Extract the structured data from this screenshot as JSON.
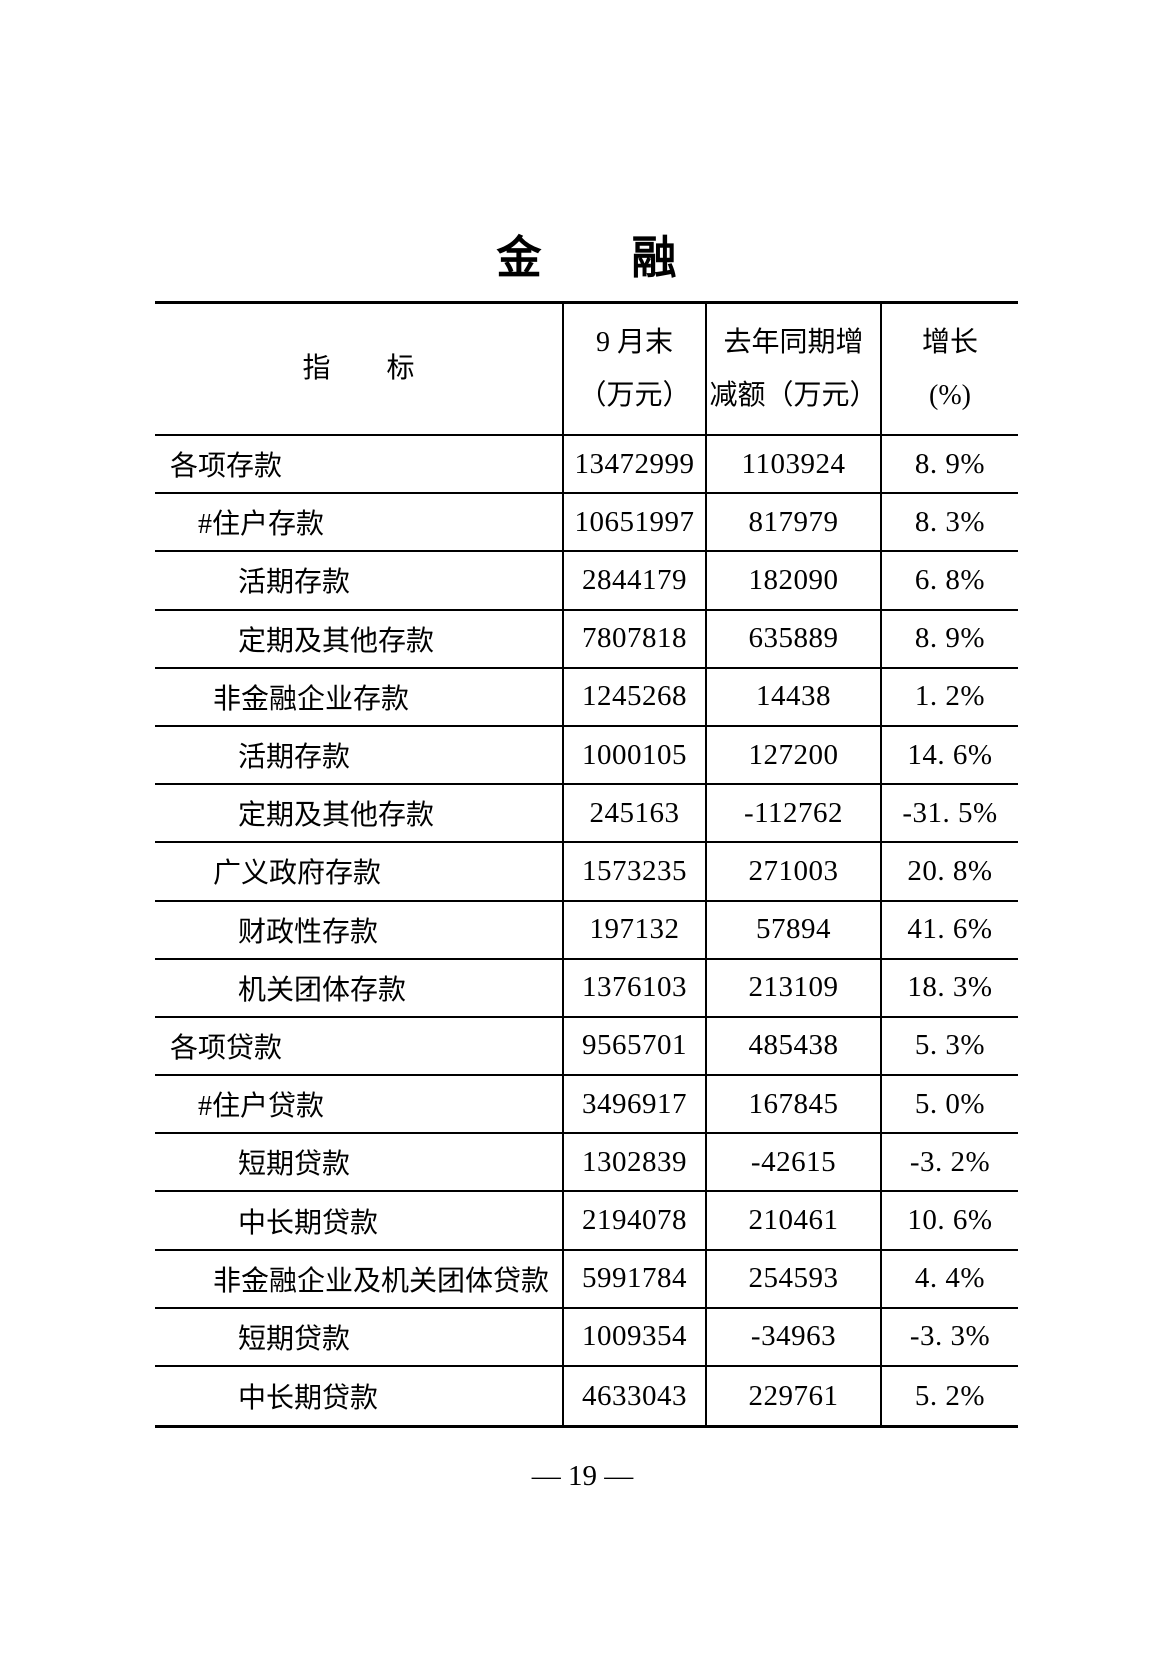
{
  "title": "金　　融",
  "table": {
    "header": {
      "indicator": "指　　标",
      "end_of_sept_line1": "9 月末",
      "end_of_sept_line2": "（万元）",
      "yoy_change_line1": "去年同期增",
      "yoy_change_line2": "减额（万元）",
      "growth_line1": "增长",
      "growth_line2": "(%)"
    },
    "rows": [
      {
        "label": "各项存款",
        "level": 0,
        "end": "13472999",
        "change": "1103924",
        "growth": "8. 9%"
      },
      {
        "label": "#住户存款",
        "level": 1,
        "end": "10651997",
        "change": "817979",
        "growth": "8. 3%"
      },
      {
        "label": "活期存款",
        "level": 3,
        "end": "2844179",
        "change": "182090",
        "growth": "6. 8%"
      },
      {
        "label": "定期及其他存款",
        "level": 3,
        "end": "7807818",
        "change": "635889",
        "growth": "8. 9%"
      },
      {
        "label": "非金融企业存款",
        "level": 2,
        "end": "1245268",
        "change": "14438",
        "growth": "1. 2%"
      },
      {
        "label": "活期存款",
        "level": 3,
        "end": "1000105",
        "change": "127200",
        "growth": "14. 6%"
      },
      {
        "label": "定期及其他存款",
        "level": 3,
        "end": "245163",
        "change": "-112762",
        "growth": "-31. 5%"
      },
      {
        "label": "广义政府存款",
        "level": 2,
        "end": "1573235",
        "change": "271003",
        "growth": "20. 8%"
      },
      {
        "label": "财政性存款",
        "level": 3,
        "end": "197132",
        "change": "57894",
        "growth": "41. 6%"
      },
      {
        "label": "机关团体存款",
        "level": 3,
        "end": "1376103",
        "change": "213109",
        "growth": "18. 3%"
      },
      {
        "label": "各项贷款",
        "level": 0,
        "end": "9565701",
        "change": "485438",
        "growth": "5. 3%"
      },
      {
        "label": "#住户贷款",
        "level": 1,
        "end": "3496917",
        "change": "167845",
        "growth": "5. 0%"
      },
      {
        "label": "短期贷款",
        "level": 3,
        "end": "1302839",
        "change": "-42615",
        "growth": "-3. 2%"
      },
      {
        "label": "中长期贷款",
        "level": 3,
        "end": "2194078",
        "change": "210461",
        "growth": "10. 6%"
      },
      {
        "label": "非金融企业及机关团体贷款",
        "level": 2,
        "end": "5991784",
        "change": "254593",
        "growth": "4. 4%"
      },
      {
        "label": "短期贷款",
        "level": 3,
        "end": "1009354",
        "change": "-34963",
        "growth": "-3. 3%"
      },
      {
        "label": "中长期贷款",
        "level": 3,
        "end": "4633043",
        "change": "229761",
        "growth": "5. 2%"
      }
    ]
  },
  "footer": {
    "page_number": "— 19 —"
  }
}
